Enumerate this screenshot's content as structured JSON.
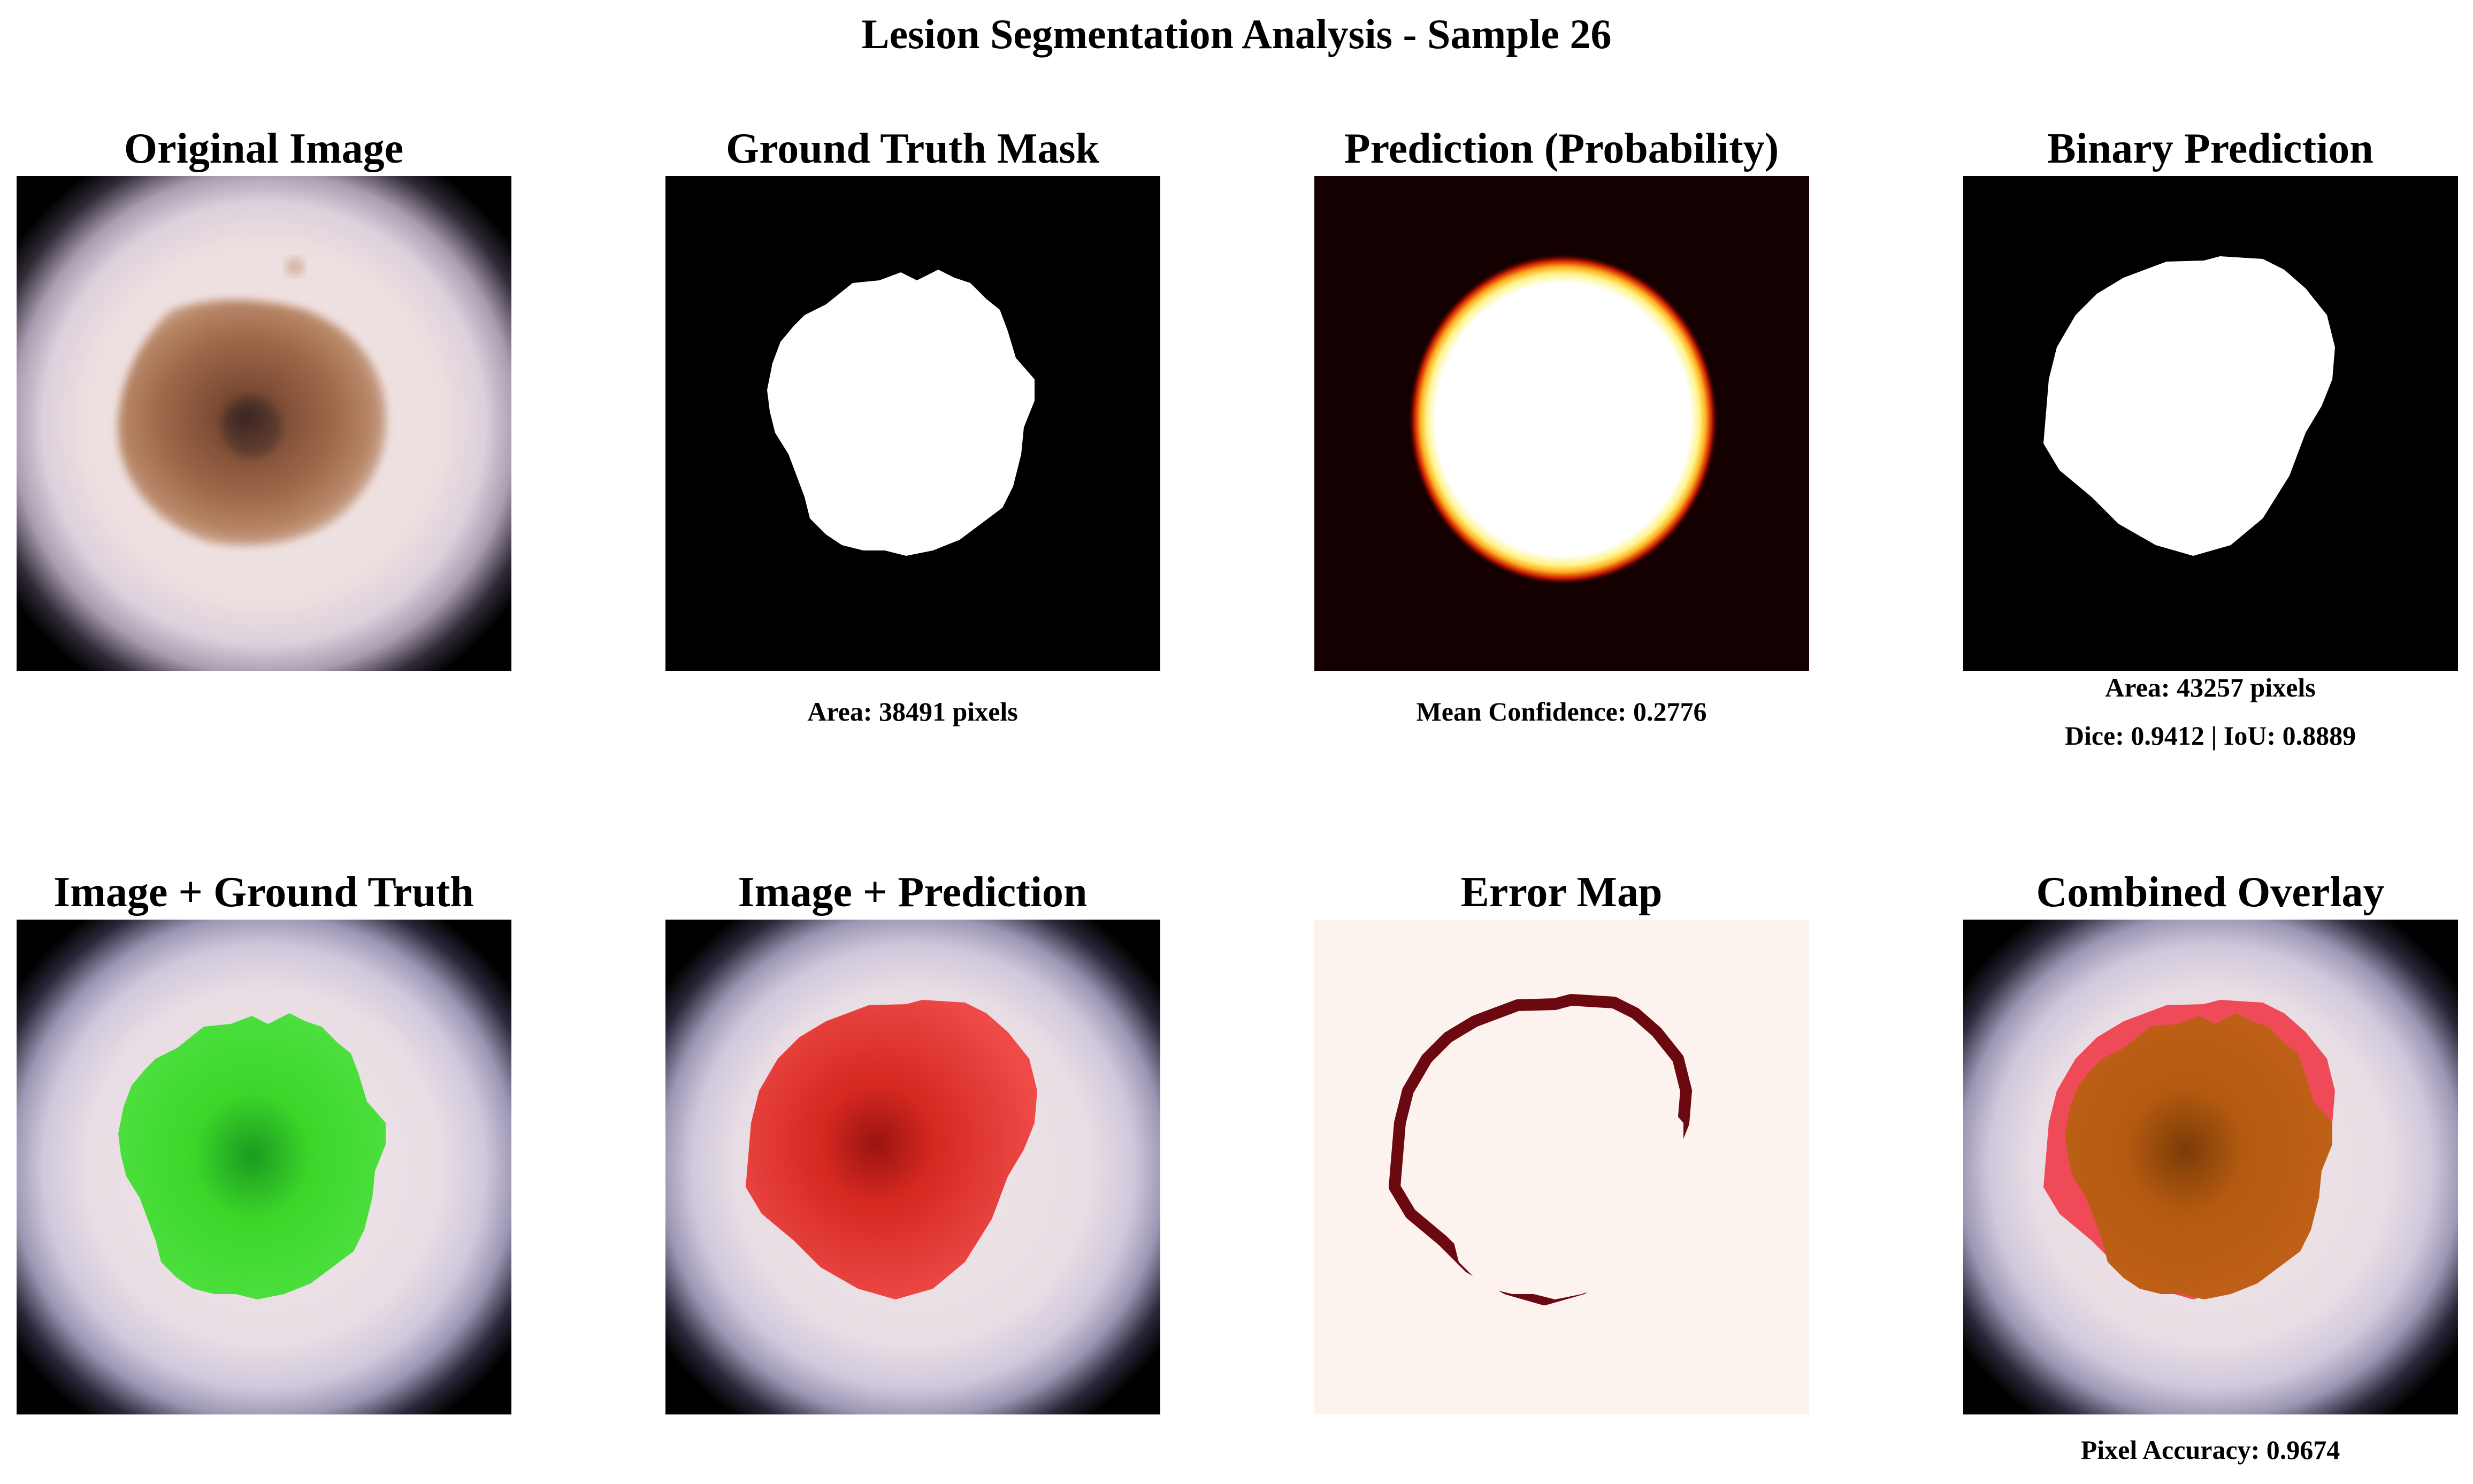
{
  "figure": {
    "title": "Lesion Segmentation Analysis - Sample 26"
  },
  "panels": [
    {
      "title": "Original Image",
      "captions": []
    },
    {
      "title": "Ground Truth Mask",
      "captions": [
        "Area: 38491 pixels"
      ]
    },
    {
      "title": "Prediction (Probability)",
      "captions": [
        "Mean Confidence: 0.2776"
      ]
    },
    {
      "title": "Binary Prediction",
      "captions": [
        "Area: 43257 pixels",
        "Dice: 0.9412 | IoU: 0.8889"
      ]
    },
    {
      "title": "Image + Ground Truth",
      "captions": []
    },
    {
      "title": "Image + Prediction",
      "captions": []
    },
    {
      "title": "Error Map",
      "captions": []
    },
    {
      "title": "Combined Overlay",
      "captions": [
        "Pixel Accuracy: 0.9674"
      ]
    }
  ],
  "colors": {
    "ground_truth_overlay": "#3cd62a",
    "prediction_overlay": "#e8383a",
    "error_color": "#6b0810",
    "error_background": "#fdf3ee",
    "mask_foreground": "#ffffff",
    "mask_background": "#000000"
  }
}
